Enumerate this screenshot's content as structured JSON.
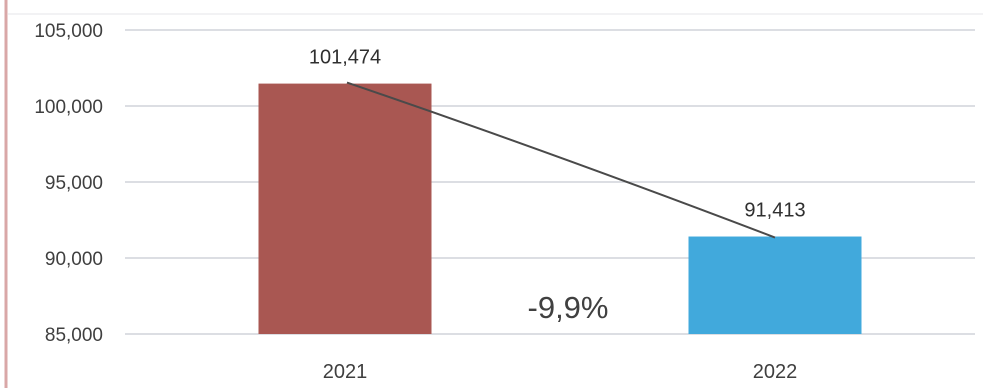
{
  "chart_data": {
    "type": "bar",
    "categories": [
      "2021",
      "2022"
    ],
    "values": [
      101474,
      91413
    ],
    "value_labels": [
      "101,474",
      "91,413"
    ],
    "y_ticks": [
      85000,
      90000,
      95000,
      100000,
      105000
    ],
    "y_tick_labels": [
      "85,000",
      "90,000",
      "95,000",
      "100,000",
      "105,000"
    ],
    "ylim": [
      85000,
      105000
    ],
    "grid": true,
    "legend": "none",
    "title": "",
    "xlabel": "",
    "ylabel": "",
    "annotation": "-9,9%",
    "trend_line": true,
    "colors": [
      "#a95752",
      "#41a9dc"
    ],
    "axis_accent_color": "#d9a7a7",
    "grid_color": "#d0d4da"
  }
}
